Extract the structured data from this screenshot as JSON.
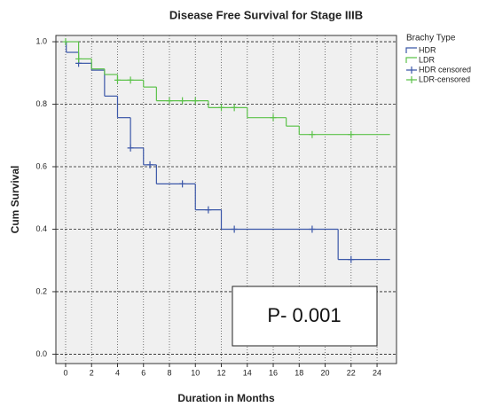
{
  "chart_data": {
    "type": "step",
    "title": "Disease Free Survival for Stage IIIB",
    "x_label": "Duration in Months",
    "y_label": "Cum Survival",
    "legend_title": "Brachy Type",
    "legend_position": "right",
    "annotation": "P- 0.001",
    "grid": true,
    "xlim": [
      -0.75,
      25.5
    ],
    "ylim": [
      -0.03,
      1.02
    ],
    "xticks": [
      0,
      2,
      4,
      6,
      8,
      10,
      12,
      14,
      16,
      18,
      20,
      22,
      24
    ],
    "yticks": [
      {
        "value": 0,
        "label": "0.0"
      },
      0.2,
      0.4,
      0.6,
      0.8,
      {
        "value": 1,
        "label": "1.0"
      }
    ],
    "series": [
      {
        "name": "HDR",
        "color": "#3b57a8",
        "x": [
          0,
          0.05,
          1,
          2,
          3,
          4,
          5,
          6,
          7,
          10,
          12,
          21,
          25
        ],
        "values": [
          1.0,
          0.966,
          0.931,
          0.909,
          0.826,
          0.757,
          0.66,
          0.606,
          0.545,
          0.462,
          0.4,
          0.303,
          0.303
        ]
      },
      {
        "name": "LDR",
        "color": "#5cc24a",
        "x": [
          0,
          1,
          2,
          3,
          4,
          6,
          7,
          11,
          14,
          17,
          18,
          25
        ],
        "values": [
          1.0,
          0.945,
          0.913,
          0.895,
          0.877,
          0.855,
          0.811,
          0.789,
          0.757,
          0.73,
          0.703,
          0.703
        ]
      },
      {
        "name": "HDR censored",
        "color": "#3b57a8",
        "censored": true,
        "x": [
          1,
          5,
          6.5,
          9,
          11,
          13,
          19,
          22
        ],
        "values": [
          0.931,
          0.66,
          0.606,
          0.545,
          0.462,
          0.4,
          0.4,
          0.303
        ]
      },
      {
        "name": "LDR-censored",
        "color": "#5cc24a",
        "censored": true,
        "x": [
          0,
          1,
          4,
          5,
          8,
          9,
          10,
          12,
          13,
          16,
          19,
          22
        ],
        "values": [
          1.0,
          0.945,
          0.877,
          0.877,
          0.811,
          0.811,
          0.811,
          0.789,
          0.789,
          0.757,
          0.703,
          0.703
        ]
      }
    ]
  }
}
